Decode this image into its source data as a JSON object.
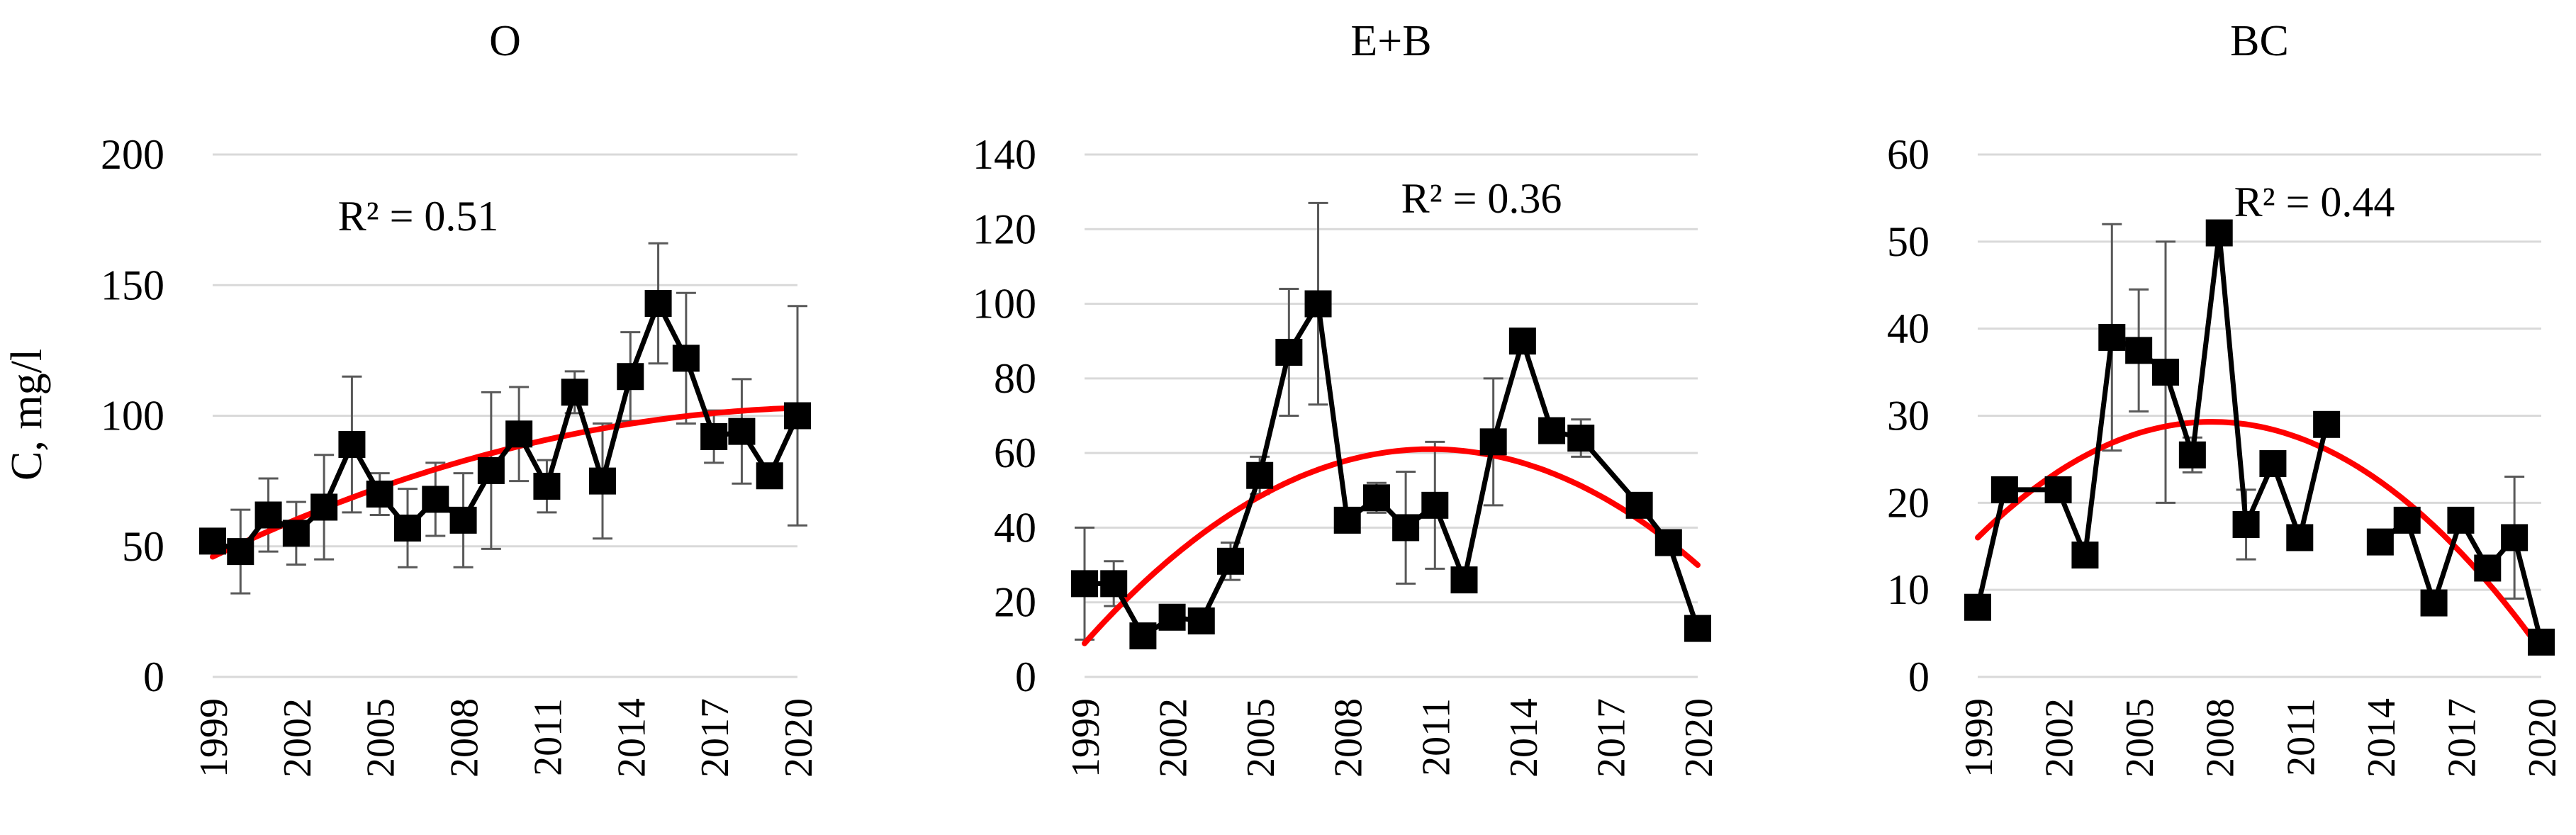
{
  "figure": {
    "ylabel": "C, mg/l"
  },
  "chart_data": [
    {
      "type": "line",
      "title": "O",
      "ylabel": "C, mg/l",
      "xlabel": "",
      "ylim": [
        0,
        200
      ],
      "yticks": [
        0,
        50,
        100,
        150,
        200
      ],
      "xticks": [
        1999,
        2002,
        2005,
        2008,
        2011,
        2014,
        2017,
        2020
      ],
      "grid": true,
      "r2_label": "R² = 0.51",
      "line_color": "#000000",
      "trend_color": "#ff0000",
      "series": [
        {
          "x": [
            1999,
            2000,
            2001,
            2002,
            2003,
            2004,
            2005,
            2006,
            2007,
            2008,
            2009,
            2010,
            2011,
            2012,
            2013,
            2014,
            2015,
            2016,
            2017,
            2018,
            2019,
            2020
          ],
          "values": [
            52,
            48,
            62,
            55,
            65,
            89,
            70,
            57,
            68,
            60,
            79,
            93,
            73,
            109,
            75,
            115,
            143,
            122,
            92,
            94,
            77,
            100
          ],
          "error": [
            null,
            16,
            14,
            12,
            20,
            26,
            8,
            15,
            14,
            18,
            30,
            18,
            10,
            8,
            22,
            17,
            23,
            25,
            10,
            20,
            4,
            42
          ]
        }
      ],
      "trend": {
        "type": "poly2",
        "x": [
          1999,
          2009.5,
          2020
        ],
        "y": [
          46,
          87,
          103
        ]
      }
    },
    {
      "type": "line",
      "title": "E+B",
      "xlabel": "",
      "ylim": [
        0,
        140
      ],
      "yticks": [
        0,
        20,
        40,
        60,
        80,
        100,
        120,
        140
      ],
      "xticks": [
        1999,
        2002,
        2005,
        2008,
        2011,
        2014,
        2017,
        2020
      ],
      "grid": true,
      "r2_label": "R² = 0.36",
      "line_color": "#000000",
      "trend_color": "#ff0000",
      "series": [
        {
          "x": [
            1999,
            2000,
            2001,
            2002,
            2003,
            2004,
            2005,
            2006,
            2007,
            2008,
            2009,
            2010,
            2011,
            2012,
            2013,
            2014,
            2015,
            2016,
            2018,
            2019,
            2020
          ],
          "values": [
            25,
            25,
            11,
            16,
            15,
            31,
            54,
            87,
            100,
            42,
            48,
            40,
            46,
            26,
            63,
            90,
            66,
            64,
            46,
            36,
            13
          ],
          "error": [
            15,
            6,
            2,
            3,
            2,
            5,
            5,
            17,
            27,
            3,
            4,
            15,
            17,
            3,
            17,
            3,
            3,
            5,
            3,
            3,
            null
          ]
        }
      ],
      "trend": {
        "type": "poly2",
        "x": [
          1999,
          2010.5,
          2020
        ],
        "y": [
          9,
          61,
          30
        ]
      }
    },
    {
      "type": "line",
      "title": "BC",
      "xlabel": "",
      "ylim": [
        0,
        60
      ],
      "yticks": [
        0,
        10,
        20,
        30,
        40,
        50,
        60
      ],
      "xticks": [
        1999,
        2002,
        2005,
        2008,
        2011,
        2014,
        2017,
        2020
      ],
      "grid": true,
      "r2_label": "R² = 0.44",
      "line_color": "#000000",
      "trend_color": "#ff0000",
      "series": [
        {
          "x": [
            1999,
            2000,
            2002,
            2003,
            2004,
            2005,
            2006,
            2007,
            2008,
            2009,
            2010,
            2011,
            2012
          ],
          "values": [
            8,
            21.5,
            21.5,
            14,
            39,
            37.5,
            35,
            25.5,
            51,
            17.5,
            24.5,
            16,
            29
          ],
          "error": [
            null,
            null,
            1,
            null,
            13,
            7,
            15,
            2,
            null,
            4,
            1,
            null,
            null
          ]
        },
        {
          "x": [
            2014,
            2015,
            2016,
            2017,
            2018,
            2019,
            2020
          ],
          "values": [
            15.5,
            18,
            8.5,
            18,
            12.5,
            16,
            4
          ],
          "error": [
            1,
            1,
            null,
            1,
            1,
            7,
            null
          ]
        }
      ],
      "trend": {
        "type": "poly2",
        "x": [
          1999,
          2007.7,
          2020
        ],
        "y": [
          16,
          29.3,
          3
        ]
      }
    }
  ]
}
